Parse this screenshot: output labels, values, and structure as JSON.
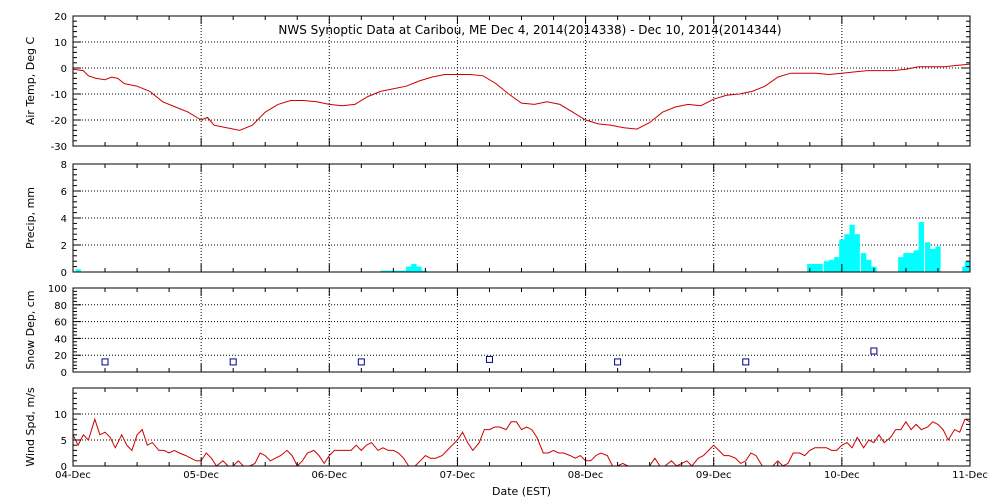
{
  "chart_data": {
    "title": "NWS Synoptic Data at Caribou, ME   Dec  4, 2014(2014338) - Dec 10, 2014(2014344)",
    "xlabel": "Date (EST)",
    "x_tick_labels": [
      "04-Dec",
      "05-Dec",
      "06-Dec",
      "07-Dec",
      "08-Dec",
      "09-Dec",
      "10-Dec",
      "11-Dec"
    ],
    "x_range_days": [
      0,
      7
    ],
    "panels": [
      {
        "id": "air-temp",
        "type": "line",
        "ylabel": "Air Temp, Deg C",
        "ylim": [
          -30,
          20
        ],
        "yticks": [
          -30,
          -20,
          -10,
          0,
          10,
          20
        ],
        "color": "#cc0000",
        "points": [
          [
            0,
            -0.5
          ],
          [
            0.08,
            -1
          ],
          [
            0.12,
            -3
          ],
          [
            0.18,
            -4
          ],
          [
            0.25,
            -4.5
          ],
          [
            0.3,
            -3.5
          ],
          [
            0.35,
            -4
          ],
          [
            0.4,
            -6
          ],
          [
            0.5,
            -7
          ],
          [
            0.6,
            -9
          ],
          [
            0.7,
            -13
          ],
          [
            0.8,
            -15
          ],
          [
            0.9,
            -17
          ],
          [
            1.0,
            -20
          ],
          [
            1.05,
            -19
          ],
          [
            1.1,
            -22
          ],
          [
            1.2,
            -23
          ],
          [
            1.3,
            -24
          ],
          [
            1.4,
            -22
          ],
          [
            1.5,
            -17
          ],
          [
            1.6,
            -14
          ],
          [
            1.7,
            -12.5
          ],
          [
            1.8,
            -12.5
          ],
          [
            1.9,
            -13
          ],
          [
            2.0,
            -14
          ],
          [
            2.1,
            -14.5
          ],
          [
            2.2,
            -14
          ],
          [
            2.3,
            -11
          ],
          [
            2.4,
            -9
          ],
          [
            2.5,
            -8
          ],
          [
            2.6,
            -7
          ],
          [
            2.7,
            -5
          ],
          [
            2.8,
            -3.5
          ],
          [
            2.9,
            -2.5
          ],
          [
            3.0,
            -2.5
          ],
          [
            3.1,
            -2.5
          ],
          [
            3.2,
            -3
          ],
          [
            3.3,
            -6
          ],
          [
            3.4,
            -10
          ],
          [
            3.5,
            -13.5
          ],
          [
            3.6,
            -14
          ],
          [
            3.7,
            -13
          ],
          [
            3.8,
            -14
          ],
          [
            3.9,
            -17
          ],
          [
            4.0,
            -20
          ],
          [
            4.1,
            -21.5
          ],
          [
            4.2,
            -22
          ],
          [
            4.3,
            -23
          ],
          [
            4.4,
            -23.5
          ],
          [
            4.5,
            -21
          ],
          [
            4.6,
            -17
          ],
          [
            4.7,
            -15
          ],
          [
            4.8,
            -14
          ],
          [
            4.9,
            -14.5
          ],
          [
            5.0,
            -12
          ],
          [
            5.1,
            -10.5
          ],
          [
            5.2,
            -10
          ],
          [
            5.3,
            -9
          ],
          [
            5.4,
            -7
          ],
          [
            5.5,
            -3.5
          ],
          [
            5.6,
            -2
          ],
          [
            5.7,
            -2
          ],
          [
            5.8,
            -2
          ],
          [
            5.9,
            -2.5
          ],
          [
            6.0,
            -2
          ],
          [
            6.1,
            -1.5
          ],
          [
            6.2,
            -1
          ],
          [
            6.3,
            -1
          ],
          [
            6.4,
            -1
          ],
          [
            6.5,
            -0.5
          ],
          [
            6.6,
            0.5
          ],
          [
            6.7,
            0.5
          ],
          [
            6.8,
            0.5
          ],
          [
            6.9,
            1
          ],
          [
            7.0,
            1.5
          ]
        ]
      },
      {
        "id": "precip",
        "type": "bar",
        "ylabel": "Precip, mm",
        "ylim": [
          0,
          8
        ],
        "yticks": [
          0,
          2,
          4,
          6,
          8
        ],
        "color": "#00ffff",
        "bar_width_days": 0.0417,
        "bars": [
          [
            0.04,
            0.2
          ],
          [
            2.42,
            0.1
          ],
          [
            2.46,
            0.1
          ],
          [
            2.5,
            0.1
          ],
          [
            2.54,
            0.1
          ],
          [
            2.58,
            0.1
          ],
          [
            2.62,
            0.4
          ],
          [
            2.66,
            0.6
          ],
          [
            2.7,
            0.4
          ],
          [
            2.74,
            0.1
          ],
          [
            5.75,
            0.6
          ],
          [
            5.79,
            0.6
          ],
          [
            5.83,
            0.6
          ],
          [
            5.88,
            0.8
          ],
          [
            5.92,
            0.9
          ],
          [
            5.96,
            1.1
          ],
          [
            6.0,
            2.4
          ],
          [
            6.04,
            2.8
          ],
          [
            6.08,
            3.5
          ],
          [
            6.12,
            2.8
          ],
          [
            6.17,
            1.4
          ],
          [
            6.21,
            0.9
          ],
          [
            6.25,
            0.4
          ],
          [
            6.46,
            1.1
          ],
          [
            6.5,
            1.4
          ],
          [
            6.54,
            1.4
          ],
          [
            6.58,
            1.6
          ],
          [
            6.62,
            3.7
          ],
          [
            6.67,
            2.2
          ],
          [
            6.71,
            1.7
          ],
          [
            6.75,
            1.9
          ],
          [
            6.96,
            0.4
          ],
          [
            6.98,
            0.8
          ]
        ]
      },
      {
        "id": "snow-depth",
        "type": "scatter",
        "ylabel": "Snow Dep, cm",
        "ylim": [
          0,
          100
        ],
        "yticks": [
          0,
          20,
          40,
          60,
          80,
          100
        ],
        "color": "#000080",
        "points": [
          [
            0.25,
            12
          ],
          [
            1.25,
            12
          ],
          [
            2.25,
            12
          ],
          [
            3.25,
            15
          ],
          [
            4.25,
            12
          ],
          [
            5.25,
            12
          ],
          [
            6.25,
            25
          ]
        ]
      },
      {
        "id": "wind-speed",
        "type": "line",
        "ylabel": "Wind Spd, m/s",
        "ylim": [
          0,
          15
        ],
        "yticks": [
          0,
          5,
          10
        ],
        "color": "#cc0000",
        "points": [
          [
            0,
            6
          ],
          [
            0.04,
            4
          ],
          [
            0.08,
            6
          ],
          [
            0.12,
            5
          ],
          [
            0.17,
            9
          ],
          [
            0.21,
            6
          ],
          [
            0.25,
            6.5
          ],
          [
            0.29,
            5.5
          ],
          [
            0.33,
            3.5
          ],
          [
            0.38,
            6
          ],
          [
            0.42,
            4
          ],
          [
            0.46,
            3
          ],
          [
            0.5,
            6
          ],
          [
            0.54,
            7
          ],
          [
            0.58,
            4
          ],
          [
            0.62,
            4.5
          ],
          [
            0.67,
            3
          ],
          [
            0.71,
            3
          ],
          [
            0.75,
            2.5
          ],
          [
            0.79,
            3
          ],
          [
            0.83,
            2.5
          ],
          [
            0.88,
            2
          ],
          [
            0.92,
            1.5
          ],
          [
            0.96,
            1
          ],
          [
            1.0,
            1
          ],
          [
            1.04,
            2.5
          ],
          [
            1.08,
            1.5
          ],
          [
            1.12,
            0
          ],
          [
            1.17,
            1
          ],
          [
            1.21,
            0
          ],
          [
            1.25,
            0
          ],
          [
            1.29,
            1
          ],
          [
            1.33,
            0
          ],
          [
            1.38,
            0
          ],
          [
            1.42,
            0.5
          ],
          [
            1.46,
            2.5
          ],
          [
            1.5,
            2
          ],
          [
            1.54,
            1
          ],
          [
            1.58,
            1.5
          ],
          [
            1.62,
            2
          ],
          [
            1.67,
            3
          ],
          [
            1.71,
            2
          ],
          [
            1.75,
            0
          ],
          [
            1.79,
            1
          ],
          [
            1.83,
            2.5
          ],
          [
            1.88,
            3
          ],
          [
            1.92,
            2
          ],
          [
            1.96,
            0.5
          ],
          [
            2.0,
            2
          ],
          [
            2.04,
            3
          ],
          [
            2.08,
            3
          ],
          [
            2.12,
            3
          ],
          [
            2.17,
            3
          ],
          [
            2.21,
            4
          ],
          [
            2.25,
            3
          ],
          [
            2.29,
            4
          ],
          [
            2.33,
            4.5
          ],
          [
            2.38,
            3
          ],
          [
            2.42,
            3.5
          ],
          [
            2.46,
            3
          ],
          [
            2.5,
            3
          ],
          [
            2.54,
            2.5
          ],
          [
            2.58,
            1.5
          ],
          [
            2.62,
            0
          ],
          [
            2.67,
            0
          ],
          [
            2.71,
            1
          ],
          [
            2.75,
            2
          ],
          [
            2.79,
            1.5
          ],
          [
            2.83,
            1.5
          ],
          [
            2.88,
            2
          ],
          [
            2.92,
            3
          ],
          [
            2.96,
            4
          ],
          [
            3.0,
            5
          ],
          [
            3.04,
            6.5
          ],
          [
            3.08,
            4.5
          ],
          [
            3.12,
            3
          ],
          [
            3.17,
            4.5
          ],
          [
            3.21,
            7
          ],
          [
            3.25,
            7
          ],
          [
            3.29,
            7.5
          ],
          [
            3.33,
            7.5
          ],
          [
            3.38,
            7
          ],
          [
            3.42,
            8.5
          ],
          [
            3.46,
            8.5
          ],
          [
            3.5,
            7
          ],
          [
            3.54,
            7.5
          ],
          [
            3.58,
            7
          ],
          [
            3.62,
            5.5
          ],
          [
            3.67,
            2.5
          ],
          [
            3.71,
            2.5
          ],
          [
            3.75,
            3
          ],
          [
            3.79,
            2.5
          ],
          [
            3.83,
            2.5
          ],
          [
            3.88,
            2
          ],
          [
            3.92,
            1.5
          ],
          [
            3.96,
            2
          ],
          [
            4.0,
            1
          ],
          [
            4.04,
            1
          ],
          [
            4.08,
            2
          ],
          [
            4.12,
            2.5
          ],
          [
            4.17,
            2
          ],
          [
            4.21,
            0
          ],
          [
            4.25,
            0
          ],
          [
            4.29,
            0.5
          ],
          [
            4.33,
            0
          ],
          [
            4.38,
            0
          ],
          [
            4.42,
            0
          ],
          [
            4.46,
            0
          ],
          [
            4.5,
            0
          ],
          [
            4.54,
            1.5
          ],
          [
            4.58,
            0
          ],
          [
            4.62,
            0
          ],
          [
            4.67,
            1
          ],
          [
            4.71,
            0
          ],
          [
            4.75,
            0.5
          ],
          [
            4.79,
            1
          ],
          [
            4.83,
            0
          ],
          [
            4.88,
            1.5
          ],
          [
            4.92,
            2
          ],
          [
            4.96,
            3
          ],
          [
            5.0,
            4
          ],
          [
            5.04,
            3
          ],
          [
            5.08,
            2
          ],
          [
            5.12,
            2
          ],
          [
            5.17,
            1.5
          ],
          [
            5.21,
            0.5
          ],
          [
            5.25,
            1
          ],
          [
            5.29,
            2.5
          ],
          [
            5.33,
            2
          ],
          [
            5.38,
            0
          ],
          [
            5.42,
            0
          ],
          [
            5.46,
            0
          ],
          [
            5.5,
            1
          ],
          [
            5.54,
            0
          ],
          [
            5.58,
            0.5
          ],
          [
            5.62,
            2.5
          ],
          [
            5.67,
            2.5
          ],
          [
            5.71,
            2
          ],
          [
            5.75,
            3
          ],
          [
            5.79,
            3.5
          ],
          [
            5.83,
            3.5
          ],
          [
            5.88,
            3.5
          ],
          [
            5.92,
            3
          ],
          [
            5.96,
            3
          ],
          [
            6.0,
            4
          ],
          [
            6.04,
            4.5
          ],
          [
            6.08,
            3.5
          ],
          [
            6.12,
            5.5
          ],
          [
            6.17,
            3.5
          ],
          [
            6.21,
            5
          ],
          [
            6.25,
            4.5
          ],
          [
            6.29,
            6
          ],
          [
            6.33,
            4.5
          ],
          [
            6.38,
            5.5
          ],
          [
            6.42,
            7
          ],
          [
            6.46,
            7
          ],
          [
            6.5,
            8.5
          ],
          [
            6.54,
            7
          ],
          [
            6.58,
            8
          ],
          [
            6.62,
            7
          ],
          [
            6.67,
            7.5
          ],
          [
            6.71,
            8.5
          ],
          [
            6.75,
            8
          ],
          [
            6.79,
            7
          ],
          [
            6.83,
            5
          ],
          [
            6.88,
            7
          ],
          [
            6.92,
            6.5
          ],
          [
            6.96,
            9
          ],
          [
            7.0,
            8.5
          ]
        ]
      }
    ]
  }
}
